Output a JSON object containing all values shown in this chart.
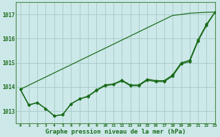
{
  "title": "Graphe pression niveau de la mer (hPa)",
  "background_color": "#cce8e8",
  "grid_color": "#aacccc",
  "line_color": "#1a6b1a",
  "marker_color": "#1a6b1a",
  "xlim": [
    -0.5,
    23
  ],
  "ylim": [
    1012.5,
    1017.5
  ],
  "yticks": [
    1013,
    1014,
    1015,
    1016,
    1017
  ],
  "xticks": [
    0,
    1,
    2,
    3,
    4,
    5,
    6,
    7,
    8,
    9,
    10,
    11,
    12,
    13,
    14,
    15,
    16,
    17,
    18,
    19,
    20,
    21,
    22,
    23
  ],
  "series1": [
    1013.9,
    1013.25,
    1013.35,
    1013.1,
    1012.8,
    1012.85,
    1013.3,
    1013.5,
    1013.6,
    1013.85,
    1014.05,
    1014.1,
    1014.25,
    1014.05,
    1014.05,
    1014.28,
    1014.22,
    1014.22,
    1014.45,
    1014.95,
    1015.05,
    1015.9,
    1016.55,
    1017.1
  ],
  "series2": [
    1013.9,
    1013.25,
    1013.35,
    1013.1,
    1012.8,
    1012.85,
    1013.3,
    1013.5,
    1013.62,
    1013.87,
    1014.08,
    1014.12,
    1014.28,
    1014.08,
    1014.08,
    1014.32,
    1014.26,
    1014.26,
    1014.5,
    1015.0,
    1015.1,
    1015.95,
    1016.6,
    1017.1
  ],
  "series_straight": [
    1013.9,
    1014.07,
    1014.24,
    1014.41,
    1014.58,
    1014.75,
    1014.92,
    1015.09,
    1015.26,
    1015.43,
    1015.6,
    1015.77,
    1015.94,
    1016.11,
    1016.28,
    1016.45,
    1016.62,
    1016.79,
    1016.96,
    1017.0,
    1017.05,
    1017.07,
    1017.09,
    1017.1
  ]
}
